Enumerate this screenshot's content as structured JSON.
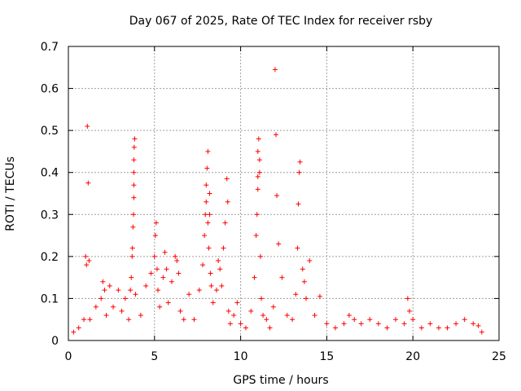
{
  "chart_data": {
    "type": "scatter",
    "title": "Day 067 of 2025, Rate Of TEC Index for receiver rsby",
    "xlabel": "GPS time / hours",
    "ylabel": "ROTI / TECUs",
    "xlim": [
      0,
      25
    ],
    "ylim": [
      0,
      0.7
    ],
    "xticks": [
      "0",
      "5",
      "10",
      "15",
      "20",
      "25"
    ],
    "yticks": [
      "0",
      "0.1",
      "0.2",
      "0.3",
      "0.4",
      "0.5",
      "0.6",
      "0.7"
    ],
    "grid": true,
    "marker": "plus",
    "series_color": "#ff0000",
    "series": [
      {
        "x": [
          0.3,
          0.6,
          0.9,
          1.0,
          1.05,
          1.1,
          1.15,
          1.2,
          1.25,
          1.6,
          1.9,
          2.0,
          2.1,
          2.2,
          2.4,
          2.6,
          2.9,
          3.1,
          3.3,
          3.5,
          3.6,
          3.65,
          3.7,
          3.72,
          3.75,
          3.78,
          3.8,
          3.8,
          3.8,
          3.8,
          3.82,
          3.85,
          3.9,
          4.2,
          4.5,
          4.8,
          5.0,
          5.05,
          5.1,
          5.15,
          5.2,
          5.3,
          5.5,
          5.6,
          5.7,
          5.8,
          6.0,
          6.2,
          6.3,
          6.4,
          6.5,
          6.7,
          7.0,
          7.3,
          7.6,
          7.8,
          7.9,
          7.95,
          8.0,
          8.0,
          8.05,
          8.1,
          8.1,
          8.15,
          8.2,
          8.2,
          8.25,
          8.3,
          8.4,
          8.6,
          8.7,
          8.8,
          8.9,
          9.0,
          9.1,
          9.2,
          9.25,
          9.3,
          9.4,
          9.6,
          9.8,
          10.0,
          10.3,
          10.6,
          10.8,
          10.9,
          10.95,
          11.0,
          11.0,
          11.0,
          11.05,
          11.1,
          11.1,
          11.15,
          11.2,
          11.3,
          11.5,
          11.7,
          11.9,
          12.0,
          12.05,
          12.1,
          12.2,
          12.4,
          12.7,
          13.0,
          13.2,
          13.3,
          13.35,
          13.4,
          13.45,
          13.6,
          13.7,
          13.8,
          14.0,
          14.3,
          14.6,
          15.0,
          15.5,
          16.0,
          16.3,
          16.6,
          17.0,
          17.5,
          18.0,
          18.5,
          19.0,
          19.5,
          19.7,
          19.8,
          20.0,
          20.5,
          21.0,
          21.5,
          22.0,
          22.5,
          23.0,
          23.5,
          23.8,
          24.0
        ],
        "y": [
          0.02,
          0.03,
          0.05,
          0.2,
          0.18,
          0.51,
          0.375,
          0.19,
          0.05,
          0.08,
          0.1,
          0.14,
          0.12,
          0.06,
          0.13,
          0.08,
          0.12,
          0.07,
          0.1,
          0.05,
          0.12,
          0.15,
          0.2,
          0.22,
          0.27,
          0.3,
          0.34,
          0.37,
          0.4,
          0.43,
          0.46,
          0.48,
          0.11,
          0.06,
          0.13,
          0.16,
          0.2,
          0.25,
          0.28,
          0.17,
          0.12,
          0.08,
          0.15,
          0.21,
          0.17,
          0.09,
          0.14,
          0.2,
          0.19,
          0.16,
          0.07,
          0.05,
          0.11,
          0.05,
          0.12,
          0.18,
          0.25,
          0.3,
          0.33,
          0.37,
          0.41,
          0.45,
          0.28,
          0.22,
          0.35,
          0.3,
          0.16,
          0.13,
          0.09,
          0.12,
          0.19,
          0.17,
          0.13,
          0.22,
          0.28,
          0.385,
          0.33,
          0.07,
          0.04,
          0.06,
          0.09,
          0.04,
          0.03,
          0.07,
          0.15,
          0.25,
          0.3,
          0.36,
          0.39,
          0.45,
          0.48,
          0.4,
          0.43,
          0.2,
          0.1,
          0.06,
          0.05,
          0.03,
          0.08,
          0.645,
          0.49,
          0.345,
          0.23,
          0.15,
          0.06,
          0.05,
          0.11,
          0.22,
          0.325,
          0.4,
          0.425,
          0.17,
          0.14,
          0.1,
          0.19,
          0.06,
          0.105,
          0.04,
          0.03,
          0.04,
          0.06,
          0.05,
          0.04,
          0.05,
          0.04,
          0.03,
          0.05,
          0.04,
          0.1,
          0.07,
          0.05,
          0.03,
          0.04,
          0.03,
          0.03,
          0.04,
          0.05,
          0.04,
          0.035,
          0.02
        ]
      }
    ]
  }
}
